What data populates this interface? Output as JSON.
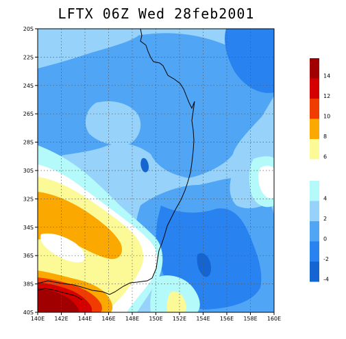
{
  "title": "LFTX 06Z Wed 28feb2001",
  "colors": {
    "red2": "#a00000",
    "red": "#d40000",
    "orangered": "#f03c00",
    "orange": "#fba800",
    "yellow": "#fbfa96",
    "white": "#ffffff",
    "cyan": "#b4fafa",
    "lightblue": "#96d2fa",
    "midblue": "#50a5f5",
    "blue": "#2882f0",
    "darkblue": "#1464d2",
    "coast": "#000000"
  },
  "map": {
    "lon_labels": [
      "140E",
      "142E",
      "144E",
      "146E",
      "148E",
      "150E",
      "152E",
      "154E",
      "156E",
      "158E",
      "160E"
    ],
    "lat_labels": [
      "20S",
      "22S",
      "24S",
      "26S",
      "28S",
      "30S",
      "32S",
      "34S",
      "36S",
      "38S",
      "40S"
    ]
  },
  "colorbar": {
    "upper": [
      {
        "label": "14",
        "color": "#a00000"
      },
      {
        "label": "12",
        "color": "#d40000"
      },
      {
        "label": "10",
        "color": "#f03c00"
      },
      {
        "label": "8",
        "color": "#fba800"
      },
      {
        "label": "6",
        "color": "#fbfa96"
      }
    ],
    "lower": [
      {
        "label": "4",
        "color": "#b4fafa"
      },
      {
        "label": "2",
        "color": "#96d2fa"
      },
      {
        "label": "0",
        "color": "#50a5f5"
      },
      {
        "label": "-2",
        "color": "#2882f0"
      },
      {
        "label": "-4",
        "color": "#1464d2"
      }
    ]
  }
}
